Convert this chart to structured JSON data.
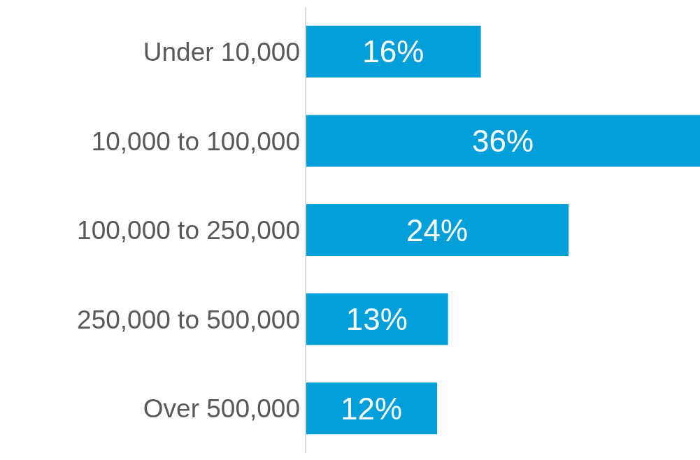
{
  "chart_data": {
    "type": "bar",
    "orientation": "horizontal",
    "categories": [
      "Under 10,000",
      "10,000 to 100,000",
      "100,000 to 250,000",
      "250,000 to 500,000",
      "Over 500,000"
    ],
    "values": [
      16,
      36,
      24,
      13,
      12
    ],
    "value_labels": [
      "16%",
      "36%",
      "24%",
      "13%",
      "12%"
    ],
    "color": "#009fda"
  }
}
